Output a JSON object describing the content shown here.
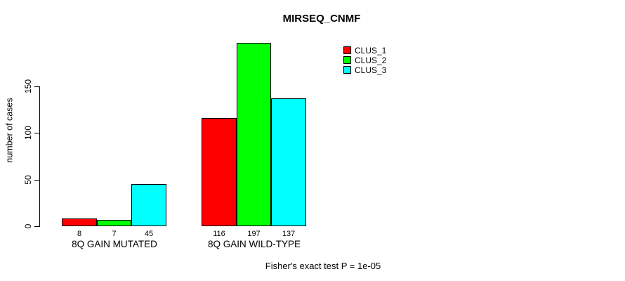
{
  "title": "MIRSEQ_CNMF",
  "footer_note": "Fisher's exact test P = 1e-05",
  "chart_data": {
    "type": "bar",
    "title": "MIRSEQ_CNMF",
    "xlabel": "",
    "ylabel": "number of cases",
    "yticks": [
      0,
      50,
      100,
      150
    ],
    "ylim": [
      0,
      205
    ],
    "grid": false,
    "legend_position": "top-right",
    "categories": [
      "8Q GAIN MUTATED",
      "8Q GAIN WILD-TYPE"
    ],
    "series": [
      {
        "name": "CLUS_1",
        "color": "#ff0000",
        "values": [
          8,
          116
        ]
      },
      {
        "name": "CLUS_2",
        "color": "#00ff00",
        "values": [
          7,
          197
        ]
      },
      {
        "name": "CLUS_3",
        "color": "#00ffff",
        "values": [
          45,
          137
        ]
      }
    ],
    "bar_value_labels": [
      [
        "8",
        "7",
        "45"
      ],
      [
        "116",
        "197",
        "137"
      ]
    ],
    "annotation": "Fisher's exact test P = 1e-05",
    "bar_border_color": "#000000"
  }
}
